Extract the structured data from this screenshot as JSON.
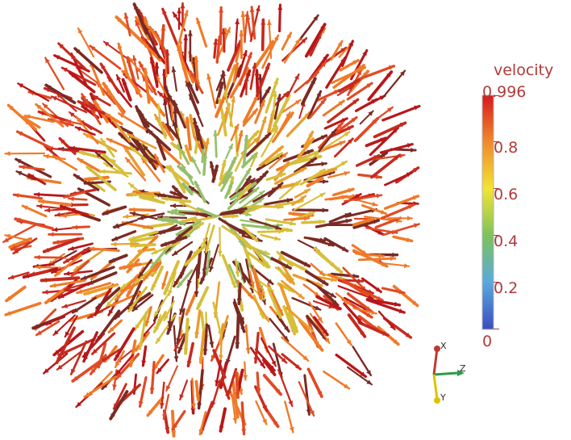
{
  "legend": {
    "title": "velocity",
    "labels": [
      "0.996",
      "0.8",
      "0.6",
      "0.4",
      "0.2",
      "0"
    ],
    "colormap": [
      "#3a4cc0",
      "#59a9de",
      "#7cc35c",
      "#f2e334",
      "#f08a2d",
      "#d7191c"
    ]
  },
  "orientation_axes": {
    "x_label": "X",
    "y_label": "Y",
    "z_label": "Z",
    "x_color": "#c0392b",
    "y_color": "#e0c200",
    "z_color": "#2d9a4a"
  },
  "glyph_colors": [
    "#b8171a",
    "#c62a1f",
    "#e04b25",
    "#f07a28",
    "#ea9d2d",
    "#d7bf3a",
    "#7a2a24",
    "#96bf6a",
    "#6ea06a"
  ]
}
